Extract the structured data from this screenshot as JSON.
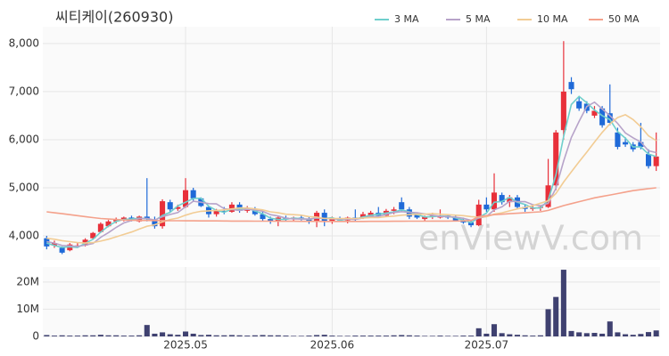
{
  "chart_data": [
    {
      "type": "candlestick",
      "title": "씨티케이(260930)",
      "watermark": "enViewV.com",
      "open": [
        3950,
        3800,
        3750,
        3700,
        3780,
        3800,
        3950,
        4080,
        4200,
        4300,
        4350,
        4380,
        4300,
        4400,
        4320,
        4200,
        4700,
        4560,
        4600,
        4950,
        4780,
        4600,
        4450,
        4520,
        4500,
        4650,
        4520,
        4560,
        4450,
        4350,
        4300,
        4380,
        4350,
        4380,
        4340,
        4300,
        4480,
        4300,
        4350,
        4320,
        4380,
        4380,
        4400,
        4480,
        4420,
        4520,
        4700,
        4550,
        4450,
        4350,
        4400,
        4380,
        4420,
        4380,
        4320,
        4280,
        4220,
        4650,
        4550,
        4850,
        4700,
        4800,
        4600,
        4560,
        4580,
        4600,
        5050,
        6200,
        7200,
        6800,
        6750,
        6500,
        6650,
        6550,
        6150,
        5950,
        5900,
        5950,
        5700,
        5450
      ],
      "high": [
        4000,
        3900,
        3780,
        3850,
        3860,
        3950,
        4080,
        4280,
        4330,
        4380,
        4400,
        4420,
        4420,
        5200,
        4400,
        4760,
        4750,
        4650,
        5200,
        5000,
        4800,
        4620,
        4560,
        4600,
        4700,
        4700,
        4620,
        4600,
        4500,
        4400,
        4420,
        4420,
        4400,
        4420,
        4400,
        4520,
        4550,
        4400,
        4400,
        4400,
        4550,
        4500,
        4520,
        4600,
        4560,
        4600,
        4800,
        4600,
        4480,
        4420,
        4480,
        4550,
        4450,
        4420,
        4380,
        4320,
        4750,
        4800,
        5300,
        4900,
        4850,
        4850,
        4650,
        4620,
        4620,
        5600,
        6200,
        8050,
        7300,
        6900,
        6800,
        6700,
        6700,
        7150,
        6250,
        6050,
        5950,
        6350,
        5800,
        6150
      ],
      "low": [
        3720,
        3750,
        3620,
        3680,
        3750,
        3780,
        3920,
        4060,
        4180,
        4260,
        4300,
        4300,
        4280,
        4300,
        4150,
        4150,
        4500,
        4520,
        4580,
        4720,
        4600,
        4380,
        4400,
        4450,
        4480,
        4480,
        4480,
        4420,
        4300,
        4250,
        4200,
        4300,
        4300,
        4320,
        4250,
        4180,
        4200,
        4250,
        4300,
        4260,
        4300,
        4350,
        4380,
        4400,
        4400,
        4450,
        4500,
        4350,
        4350,
        4300,
        4350,
        4360,
        4350,
        4300,
        4250,
        4180,
        4200,
        4500,
        4500,
        4650,
        4600,
        4550,
        4500,
        4520,
        4520,
        4580,
        4950,
        6000,
        6950,
        6600,
        6550,
        6450,
        6250,
        6300,
        5800,
        5850,
        5750,
        5800,
        5400,
        5350
      ],
      "close": [
        3780,
        3850,
        3650,
        3820,
        3800,
        3920,
        4060,
        4250,
        4300,
        4350,
        4380,
        4320,
        4400,
        4350,
        4200,
        4720,
        4550,
        4600,
        4950,
        4780,
        4620,
        4450,
        4520,
        4500,
        4650,
        4520,
        4580,
        4450,
        4350,
        4300,
        4380,
        4350,
        4380,
        4340,
        4300,
        4480,
        4300,
        4350,
        4320,
        4380,
        4350,
        4450,
        4480,
        4420,
        4520,
        4550,
        4550,
        4400,
        4380,
        4400,
        4420,
        4420,
        4380,
        4320,
        4280,
        4220,
        4650,
        4550,
        4900,
        4700,
        4800,
        4600,
        4560,
        4580,
        4600,
        5050,
        6150,
        7000,
        7050,
        6650,
        6600,
        6600,
        6300,
        6350,
        5850,
        5900,
        5800,
        5850,
        5450,
        5650
      ],
      "up_color": "#e8303a",
      "down_color": "#1f6ad8",
      "series": [
        {
          "name": "3 MA",
          "color": "#6fcfcc",
          "values": [
            3850,
            3800,
            3760,
            3773,
            3757,
            3847,
            3927,
            4077,
            4203,
            4300,
            4343,
            4350,
            4367,
            4357,
            4317,
            4423,
            4490,
            4623,
            4700,
            4777,
            4783,
            4617,
            4530,
            4490,
            4557,
            4557,
            4583,
            4517,
            4460,
            4367,
            4343,
            4343,
            4370,
            4357,
            4340,
            4373,
            4360,
            4377,
            4323,
            4350,
            4350,
            4393,
            4427,
            4450,
            4473,
            4497,
            4540,
            4500,
            4443,
            4393,
            4400,
            4413,
            4407,
            4373,
            4327,
            4273,
            4383,
            4473,
            4700,
            4717,
            4800,
            4700,
            4653,
            4580,
            4580,
            4743,
            5267,
            6067,
            6733,
            6900,
            6767,
            6617,
            6500,
            6417,
            6167,
            6033,
            5850,
            5850,
            5700,
            5650
          ]
        },
        {
          "name": "5 MA",
          "color": "#b7a3c9",
          "values": [
            3880,
            3850,
            3800,
            3790,
            3780,
            3808,
            3840,
            3970,
            4066,
            4176,
            4268,
            4320,
            4360,
            4360,
            4330,
            4398,
            4444,
            4484,
            4604,
            4720,
            4700,
            4670,
            4664,
            4564,
            4548,
            4528,
            4554,
            4540,
            4510,
            4440,
            4412,
            4366,
            4352,
            4350,
            4350,
            4370,
            4360,
            4354,
            4350,
            4346,
            4340,
            4370,
            4396,
            4404,
            4444,
            4484,
            4504,
            4488,
            4480,
            4456,
            4430,
            4404,
            4400,
            4388,
            4364,
            4324,
            4370,
            4404,
            4540,
            4604,
            4720,
            4710,
            4712,
            4648,
            4628,
            4678,
            4988,
            5556,
            6046,
            6380,
            6690,
            6780,
            6640,
            6500,
            6340,
            6140,
            6040,
            5950,
            5770,
            5730
          ]
        },
        {
          "name": "10 MA",
          "color": "#f2cc94",
          "values": [
            3950,
            3930,
            3900,
            3880,
            3860,
            3850,
            3860,
            3890,
            3930,
            3980,
            4030,
            4080,
            4140,
            4200,
            4230,
            4290,
            4340,
            4370,
            4430,
            4480,
            4510,
            4520,
            4530,
            4540,
            4560,
            4580,
            4580,
            4560,
            4540,
            4500,
            4480,
            4450,
            4440,
            4430,
            4400,
            4390,
            4360,
            4360,
            4360,
            4360,
            4360,
            4370,
            4380,
            4380,
            4400,
            4410,
            4430,
            4440,
            4450,
            4450,
            4460,
            4450,
            4440,
            4430,
            4420,
            4400,
            4390,
            4400,
            4450,
            4480,
            4520,
            4560,
            4590,
            4630,
            4680,
            4730,
            4880,
            5120,
            5330,
            5540,
            5740,
            5950,
            6150,
            6330,
            6460,
            6520,
            6420,
            6270,
            6080,
            5980
          ]
        },
        {
          "name": "50 MA",
          "color": "#f4a18b",
          "values": [
            4500,
            4480,
            4460,
            4440,
            4420,
            4400,
            4380,
            4360,
            4350,
            4340,
            4330,
            4325,
            4320,
            4320,
            4318,
            4316,
            4315,
            4314,
            4313,
            4312,
            4311,
            4310,
            4310,
            4309,
            4308,
            4308,
            4307,
            4306,
            4305,
            4305,
            4304,
            4303,
            4303,
            4302,
            4302,
            4301,
            4300,
            4300,
            4300,
            4300,
            4300,
            4300,
            4301,
            4302,
            4302,
            4303,
            4304,
            4305,
            4306,
            4306,
            4307,
            4308,
            4308,
            4309,
            4310,
            4320,
            4400,
            4420,
            4440,
            4450,
            4460,
            4470,
            4480,
            4490,
            4500,
            4530,
            4580,
            4630,
            4670,
            4710,
            4750,
            4790,
            4820,
            4850,
            4880,
            4910,
            4940,
            4960,
            4980,
            5000
          ]
        }
      ],
      "xlim": [
        -0.5,
        79.5
      ],
      "ylim": [
        3500,
        8350
      ],
      "yticks": [
        {
          "value": 4000,
          "label": "4,000"
        },
        {
          "value": 5000,
          "label": "5,000"
        },
        {
          "value": 6000,
          "label": "6,000"
        },
        {
          "value": 7000,
          "label": "7,000"
        },
        {
          "value": 8000,
          "label": "8,000"
        }
      ],
      "grid": true,
      "legend": "top-right"
    },
    {
      "type": "bar",
      "color": "#3f4170",
      "values": [
        500000,
        300000,
        400000,
        300000,
        300000,
        400000,
        400000,
        600000,
        400000,
        400000,
        300000,
        300000,
        400000,
        4200000,
        1000000,
        1500000,
        800000,
        600000,
        1800000,
        1000000,
        500000,
        600000,
        400000,
        400000,
        500000,
        400000,
        300000,
        400000,
        500000,
        400000,
        400000,
        300000,
        200000,
        200000,
        300000,
        500000,
        600000,
        300000,
        200000,
        200000,
        300000,
        300000,
        300000,
        300000,
        300000,
        400000,
        500000,
        400000,
        300000,
        200000,
        200000,
        300000,
        200000,
        200000,
        300000,
        300000,
        3000000,
        1000000,
        4500000,
        1200000,
        800000,
        600000,
        400000,
        300000,
        400000,
        10000000,
        14500000,
        24500000,
        2000000,
        1500000,
        1200000,
        1300000,
        1000000,
        5500000,
        1500000,
        800000,
        600000,
        900000,
        1600000,
        2200000
      ],
      "xlim": [
        -0.5,
        79.5
      ],
      "ylim": [
        0,
        25500000
      ],
      "yticks": [
        0,
        {
          "value": 10000000,
          "label": "10M"
        },
        {
          "value": 20000000,
          "label": "20M"
        }
      ],
      "xticks": [
        {
          "value": 18,
          "label": "2025.05"
        },
        {
          "value": 37,
          "label": "2025.06"
        },
        {
          "value": 57,
          "label": "2025.07"
        }
      ],
      "grid": true
    }
  ]
}
